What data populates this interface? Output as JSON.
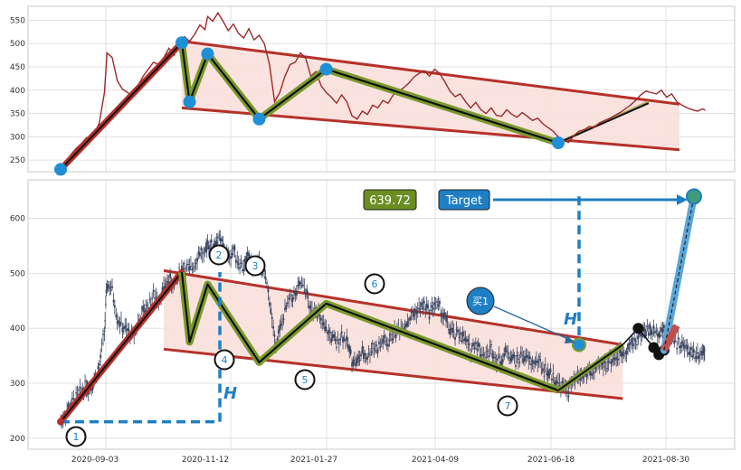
{
  "colors": {
    "price_line": "#9b2a2a",
    "trend_red": "#b5312a",
    "channel_fill": "#f9e0da",
    "zigzag_outer": "#7a9a2e",
    "zigzag_inner": "#111111",
    "pivot_blue": "#1f8fd6",
    "target_blue": "#1f7fc4",
    "candles": "#3a4560",
    "target_value_bg": "#6b8e23",
    "grid": "#d9d9d9"
  },
  "chart_data": [
    {
      "type": "line",
      "panel": "top",
      "ylim": [
        225,
        580
      ],
      "yticks": [
        "250",
        "300",
        "350",
        "400",
        "450",
        "500",
        "550"
      ],
      "grid": true,
      "series": [
        {
          "values": [
            [
              0,
              230
            ],
            [
              2,
              245
            ],
            [
              4,
              262
            ],
            [
              6,
              275
            ],
            [
              8,
              285
            ],
            [
              10,
              298
            ],
            [
              11,
              290
            ],
            [
              13,
              305
            ],
            [
              15,
              330
            ],
            [
              17,
              395
            ],
            [
              18,
              480
            ],
            [
              20,
              470
            ],
            [
              22,
              420
            ],
            [
              24,
              402
            ],
            [
              26,
              395
            ],
            [
              28,
              385
            ],
            [
              30,
              410
            ],
            [
              32,
              430
            ],
            [
              34,
              445
            ],
            [
              36,
              460
            ],
            [
              38,
              455
            ],
            [
              40,
              470
            ],
            [
              42,
              490
            ],
            [
              44,
              475
            ],
            [
              46,
              500
            ],
            [
              48,
              515
            ],
            [
              50,
              505
            ],
            [
              52,
              520
            ],
            [
              54,
              540
            ],
            [
              56,
              530
            ],
            [
              57,
              558
            ],
            [
              59,
              548
            ],
            [
              61,
              566
            ],
            [
              63,
              548
            ],
            [
              65,
              528
            ],
            [
              67,
              542
            ],
            [
              69,
              522
            ],
            [
              71,
              512
            ],
            [
              73,
              532
            ],
            [
              75,
              508
            ],
            [
              77,
              518
            ],
            [
              79,
              500
            ],
            [
              81,
              455
            ],
            [
              83,
              375
            ],
            [
              85,
              395
            ],
            [
              87,
              430
            ],
            [
              89,
              455
            ],
            [
              91,
              460
            ],
            [
              93,
              480
            ],
            [
              95,
              470
            ],
            [
              97,
              430
            ],
            [
              99,
              440
            ],
            [
              101,
              410
            ],
            [
              103,
              395
            ],
            [
              105,
              385
            ],
            [
              107,
              372
            ],
            [
              109,
              390
            ],
            [
              111,
              375
            ],
            [
              113,
              345
            ],
            [
              115,
              338
            ],
            [
              117,
              355
            ],
            [
              119,
              348
            ],
            [
              121,
              368
            ],
            [
              123,
              362
            ],
            [
              125,
              378
            ],
            [
              127,
              372
            ],
            [
              129,
              390
            ],
            [
              131,
              398
            ],
            [
              133,
              405
            ],
            [
              135,
              415
            ],
            [
              137,
              428
            ],
            [
              139,
              436
            ],
            [
              141,
              442
            ],
            [
              143,
              430
            ],
            [
              145,
              445
            ],
            [
              147,
              436
            ],
            [
              149,
              418
            ],
            [
              151,
              398
            ],
            [
              153,
              386
            ],
            [
              155,
              392
            ],
            [
              157,
              376
            ],
            [
              159,
              362
            ],
            [
              161,
              374
            ],
            [
              163,
              358
            ],
            [
              165,
              350
            ],
            [
              167,
              362
            ],
            [
              169,
              346
            ],
            [
              171,
              344
            ],
            [
              173,
              358
            ],
            [
              175,
              348
            ],
            [
              177,
              342
            ],
            [
              179,
              352
            ],
            [
              181,
              344
            ],
            [
              183,
              335
            ],
            [
              185,
              340
            ],
            [
              187,
              328
            ],
            [
              189,
              320
            ],
            [
              191,
              312
            ],
            [
              193,
              300
            ],
            [
              195,
              292
            ],
            [
              197,
              288
            ],
            [
              199,
              302
            ],
            [
              201,
              312
            ],
            [
              203,
              315
            ],
            [
              205,
              322
            ],
            [
              207,
              320
            ],
            [
              209,
              330
            ],
            [
              211,
              335
            ],
            [
              213,
              340
            ],
            [
              215,
              346
            ],
            [
              217,
              352
            ],
            [
              219,
              360
            ],
            [
              221,
              368
            ],
            [
              223,
              378
            ],
            [
              225,
              390
            ],
            [
              227,
              398
            ],
            [
              229,
              395
            ],
            [
              231,
              392
            ],
            [
              233,
              400
            ],
            [
              235,
              385
            ],
            [
              237,
              392
            ],
            [
              239,
              375
            ],
            [
              241,
              368
            ],
            [
              243,
              362
            ],
            [
              245,
              358
            ],
            [
              247,
              355
            ],
            [
              249,
              360
            ],
            [
              250,
              357
            ]
          ]
        }
      ],
      "pivots": [
        [
          0,
          230
        ],
        [
          47,
          502
        ],
        [
          50,
          375
        ],
        [
          57,
          478
        ],
        [
          77,
          338
        ],
        [
          103,
          445
        ],
        [
          193,
          287
        ]
      ],
      "channel": {
        "upper": [
          [
            47,
            505
          ],
          [
            240,
            370
          ]
        ],
        "lower": [
          [
            47,
            362
          ],
          [
            240,
            272
          ]
        ]
      }
    },
    {
      "type": "scatter",
      "panel": "bottom",
      "ylim": [
        180,
        670
      ],
      "yticks": [
        "200",
        "300",
        "400",
        "500",
        "600"
      ],
      "x_tick_labels": [
        "2020-09-03",
        "2020-11-12",
        "2021-01-27",
        "2021-04-09",
        "2021-06-18",
        "2021-08-30"
      ],
      "grid": true,
      "pivot_labels": [
        "1",
        "2",
        "3",
        "4",
        "5",
        "6",
        "7"
      ],
      "pivots": [
        [
          0,
          230
        ],
        [
          47,
          502
        ],
        [
          50,
          375
        ],
        [
          57,
          480
        ],
        [
          77,
          338
        ],
        [
          103,
          445
        ],
        [
          193,
          287
        ],
        [
          218,
          370
        ]
      ],
      "channel": {
        "upper": [
          [
            40,
            505
          ],
          [
            218,
            370
          ]
        ],
        "lower": [
          [
            40,
            362
          ],
          [
            218,
            272
          ]
        ]
      },
      "h_label": "H",
      "target_value": "639.72",
      "target_label": "Target",
      "buy_label": "买1",
      "extension": [
        [
          218,
          370
        ],
        [
          224,
          400
        ],
        [
          230,
          365
        ],
        [
          232,
          352
        ],
        [
          234,
          360
        ]
      ],
      "projection": [
        [
          234,
          360
        ],
        [
          248,
          639.72
        ]
      ]
    }
  ]
}
